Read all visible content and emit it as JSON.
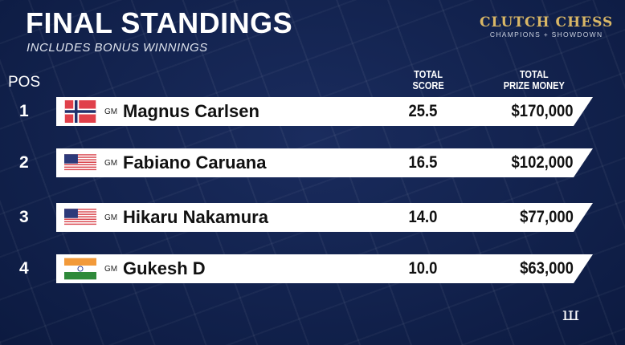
{
  "header": {
    "title": "FINAL STANDINGS",
    "subtitle": "INCLUDES BONUS WINNINGS"
  },
  "logo": {
    "line1": "CLUTCH CHESS",
    "line2": "CHAMPIONS + SHOWDOWN",
    "brand_color": "#d9b766"
  },
  "columns": {
    "pos": "POS",
    "score_l1": "TOTAL",
    "score_l2": "SCORE",
    "prize_l1": "TOTAL",
    "prize_l2": "PRIZE MONEY"
  },
  "rows": [
    {
      "pos": "1",
      "flag": "norway",
      "title": "GM",
      "name": "Magnus Carlsen",
      "score": "25.5",
      "prize": "$170,000"
    },
    {
      "pos": "2",
      "flag": "usa",
      "title": "GM",
      "name": "Fabiano Caruana",
      "score": "16.5",
      "prize": "$102,000"
    },
    {
      "pos": "3",
      "flag": "usa",
      "title": "GM",
      "name": "Hikaru Nakamura",
      "score": "14.0",
      "prize": "$77,000"
    },
    {
      "pos": "4",
      "flag": "india",
      "title": "GM",
      "name": "Gukesh D",
      "score": "10.0",
      "prize": "$63,000"
    }
  ],
  "footer_logo": "CSLC"
}
